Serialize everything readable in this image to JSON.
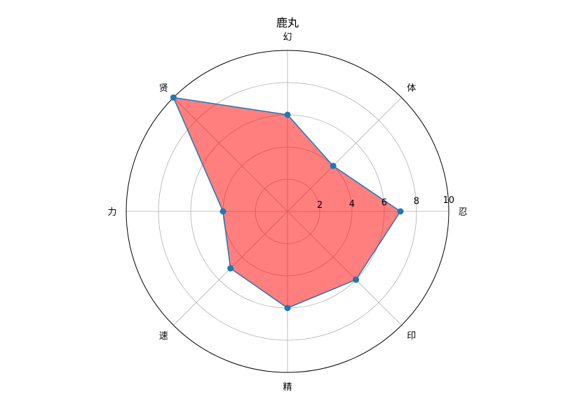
{
  "chart_data": {
    "type": "radar",
    "title": "鹿丸",
    "categories": [
      "忍",
      "体",
      "幻",
      "贤",
      "力",
      "速",
      "精",
      "印"
    ],
    "series": [
      {
        "values": [
          7,
          4,
          6,
          10,
          4,
          5,
          6,
          6
        ]
      }
    ],
    "rlim": [
      0,
      10
    ],
    "r_ticks": [
      "2",
      "4",
      "6",
      "8",
      "10"
    ],
    "grid": true,
    "colors": {
      "fill": "#ff0000",
      "fill_opacity": 0.5,
      "line": "#1f77b4",
      "marker": "#1f77b4",
      "grid": "#b0b0b0",
      "frame": "#000000"
    }
  }
}
